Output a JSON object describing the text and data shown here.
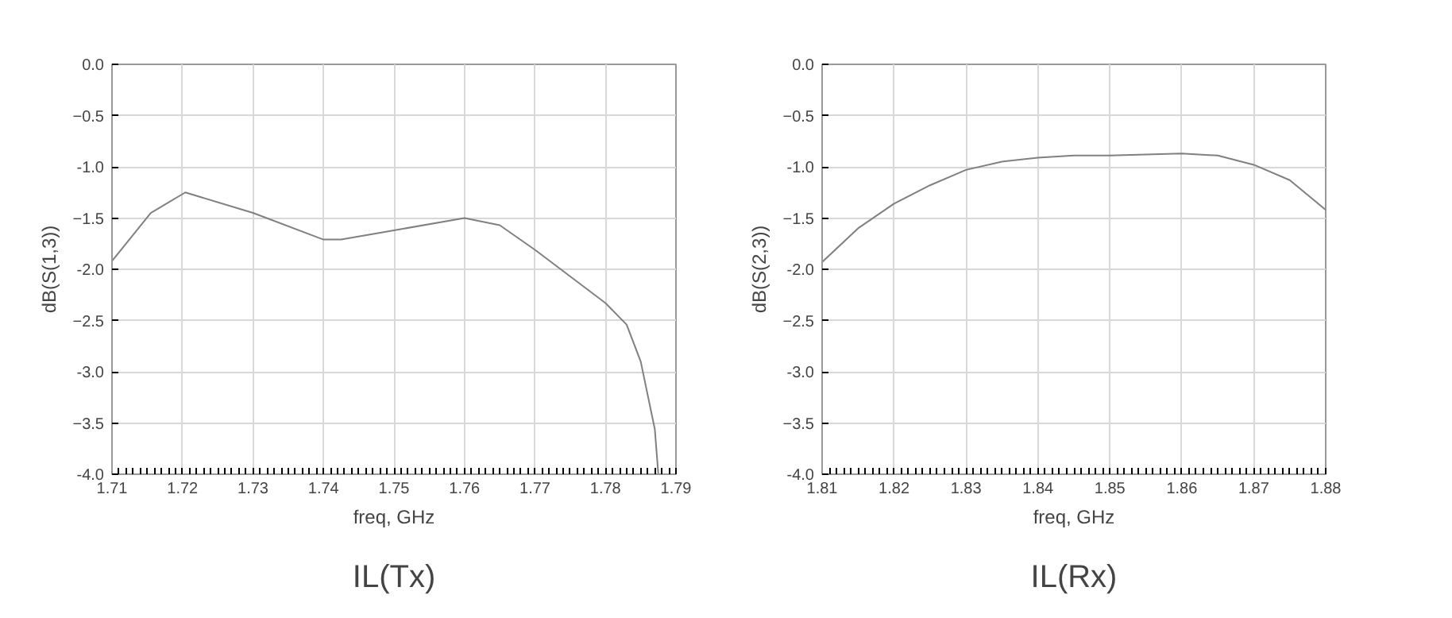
{
  "chart_data": [
    {
      "type": "line",
      "title": "IL(Tx)",
      "xlabel": "freq, GHz",
      "ylabel": "dB(S(1,3))",
      "grid": true,
      "x": [
        1.71,
        1.7155,
        1.7204,
        1.73,
        1.74,
        1.7425,
        1.75,
        1.76,
        1.765,
        1.77,
        1.775,
        1.78,
        1.783,
        1.785,
        1.787,
        1.7875
      ],
      "series": [
        {
          "color": "#808080",
          "values": [
            -1.92,
            -1.45,
            -1.25,
            -1.45,
            -1.71,
            -1.71,
            -1.62,
            -1.5,
            -1.57,
            -1.81,
            -2.07,
            -2.33,
            -2.54,
            -2.9,
            -3.56,
            -4.0
          ]
        }
      ],
      "xlim": [
        1.71,
        1.79
      ],
      "ylim": [
        -4.0,
        0.0
      ],
      "xticks": [
        1.71,
        1.72,
        1.73,
        1.74,
        1.75,
        1.76,
        1.77,
        1.78,
        1.79
      ],
      "yticks": [
        {
          "value": 0,
          "label": "0.0"
        },
        -0.5,
        {
          "value": -1,
          "label": "-1.0"
        },
        -1.5,
        {
          "value": -2,
          "label": "-2.0"
        },
        -2.5,
        {
          "value": -3,
          "label": "-3.0"
        },
        -3.5,
        {
          "value": -4,
          "label": "-4.0"
        }
      ]
    },
    {
      "type": "line",
      "title": "IL(Rx)",
      "xlabel": "freq, GHz",
      "ylabel": "dB(S(2,3))",
      "grid": true,
      "x": [
        1.81,
        1.815,
        1.82,
        1.825,
        1.83,
        1.835,
        1.84,
        1.845,
        1.85,
        1.855,
        1.86,
        1.865,
        1.87,
        1.875,
        1.88
      ],
      "series": [
        {
          "color": "#808080",
          "values": [
            -1.93,
            -1.6,
            -1.36,
            -1.18,
            -1.03,
            -0.95,
            -0.91,
            -0.89,
            -0.89,
            -0.88,
            -0.87,
            -0.89,
            -0.98,
            -1.13,
            -1.42
          ]
        }
      ],
      "xlim": [
        1.81,
        1.88
      ],
      "ylim": [
        -4.0,
        0.0
      ],
      "xticks": [
        1.81,
        1.82,
        1.83,
        1.84,
        1.85,
        1.86,
        1.87,
        1.88
      ],
      "yticks": [
        {
          "value": 0,
          "label": "0.0"
        },
        -0.5,
        {
          "value": -1,
          "label": "-1.0"
        },
        -1.5,
        {
          "value": -2,
          "label": "-2.0"
        },
        -2.5,
        {
          "value": -3,
          "label": "-3.0"
        },
        -3.5,
        {
          "value": -4,
          "label": "-4.0"
        }
      ]
    }
  ]
}
